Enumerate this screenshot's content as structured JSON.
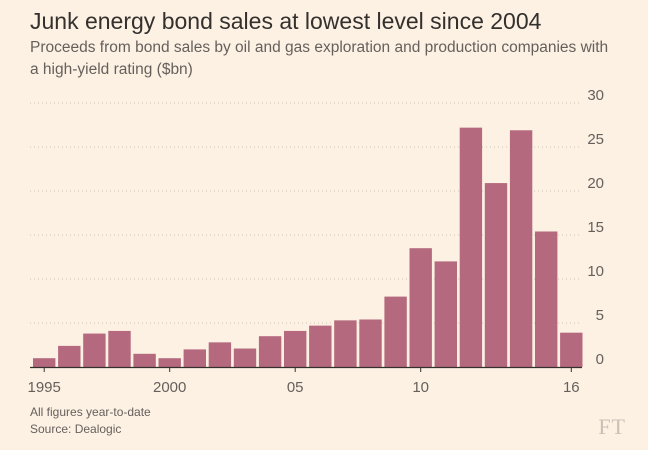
{
  "title": "Junk energy bond sales at lowest level since 2004",
  "subtitle": "Proceeds from bond sales by oil and gas exploration and production companies with a high-yield rating ($bn)",
  "footnote_1": "All figures year-to-date",
  "footnote_2": "Source: Dealogic",
  "logo": "FT",
  "colors": {
    "bar": "#b5697e",
    "background": "#fdf1e4",
    "grid": "#cec6b9",
    "axis": "#33302e",
    "text": "#66605c"
  },
  "chart_data": {
    "type": "bar",
    "categories": [
      "1995",
      "1996",
      "1997",
      "1998",
      "1999",
      "2000",
      "2001",
      "2002",
      "2003",
      "2004",
      "2005",
      "2006",
      "2007",
      "2008",
      "2009",
      "2010",
      "2011",
      "2012",
      "2013",
      "2014",
      "2015",
      "2016"
    ],
    "values": [
      1.0,
      2.4,
      3.8,
      4.1,
      1.5,
      1.0,
      2.0,
      2.8,
      2.1,
      3.5,
      4.1,
      4.7,
      5.3,
      5.4,
      8.0,
      13.5,
      12.0,
      27.2,
      20.9,
      26.9,
      15.4,
      3.9
    ],
    "xtick_labels": [
      {
        "category": "1995",
        "label": "1995"
      },
      {
        "category": "2000",
        "label": "2000"
      },
      {
        "category": "2005",
        "label": "05"
      },
      {
        "category": "2010",
        "label": "10"
      },
      {
        "category": "2016",
        "label": "16"
      }
    ],
    "yticks": [
      0,
      5,
      10,
      15,
      20,
      25,
      30
    ],
    "ylim": [
      0,
      30
    ],
    "xlabel": "",
    "ylabel": "",
    "grid": true,
    "y_axis_side": "right"
  }
}
